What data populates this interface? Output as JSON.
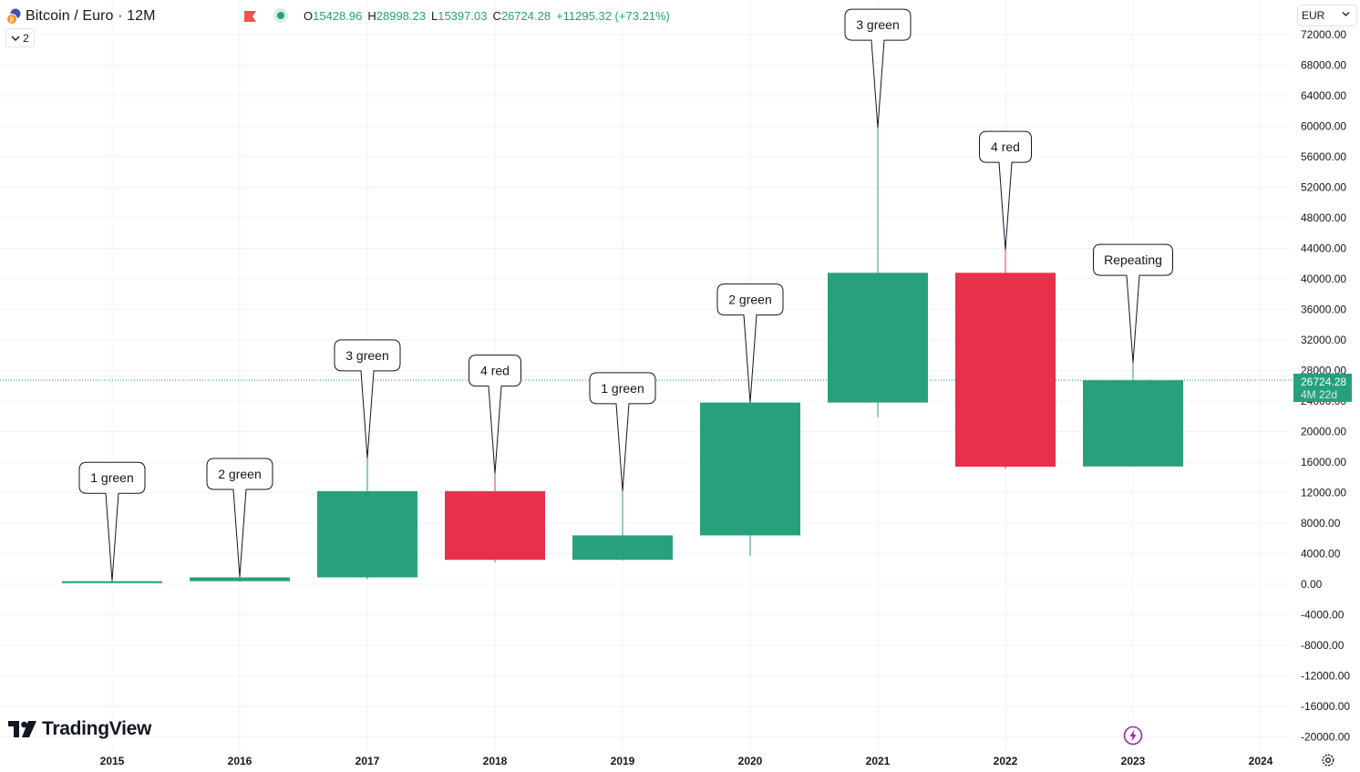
{
  "header": {
    "symbol": "Bitcoin / Euro · 12M",
    "open_label": "O",
    "open": "15428.96",
    "high_label": "H",
    "high": "28998.23",
    "low_label": "L",
    "low": "15397.03",
    "close_label": "C",
    "close": "26724.28",
    "change": "+11295.32 (+73.21%)",
    "collapse_count": "2",
    "currency": "EUR"
  },
  "price_tag": {
    "price": "26724.28",
    "countdown": "4M 22d"
  },
  "branding": {
    "name": "TradingView"
  },
  "icons": {
    "symbol": "bitcoin-euro-icon",
    "flag": "flag-icon",
    "live": "live-dot-icon",
    "collapse": "chevron-down-icon",
    "currency_caret": "chevron-down-icon",
    "logo": "tradingview-logo-icon",
    "event": "lightning-icon",
    "settings": "gear-icon"
  },
  "colors": {
    "up": "#26a17b",
    "down": "#e8304a",
    "grid": "#f0f3fa",
    "text": "#131722",
    "event": "#9c27b0"
  },
  "chart_data": {
    "type": "candlestick",
    "interval": "12M",
    "x": [
      "2015",
      "2016",
      "2017",
      "2018",
      "2019",
      "2020",
      "2021",
      "2022",
      "2023",
      "2024"
    ],
    "candles": [
      {
        "x": "2015",
        "open": 150,
        "high": 450,
        "low": 150,
        "close": 400,
        "annotation": "1 green"
      },
      {
        "x": "2016",
        "open": 400,
        "high": 950,
        "low": 350,
        "close": 900,
        "annotation": "2 green"
      },
      {
        "x": "2017",
        "open": 900,
        "high": 16500,
        "low": 650,
        "close": 12200,
        "annotation": "3 green"
      },
      {
        "x": "2018",
        "open": 12200,
        "high": 14500,
        "low": 2900,
        "close": 3200,
        "annotation": "4 red"
      },
      {
        "x": "2019",
        "open": 3200,
        "high": 12200,
        "low": 3100,
        "close": 6400,
        "annotation": "1 green"
      },
      {
        "x": "2020",
        "open": 6400,
        "high": 23800,
        "low": 3700,
        "close": 23800,
        "annotation": "2 green"
      },
      {
        "x": "2021",
        "open": 23800,
        "high": 59800,
        "low": 21900,
        "close": 40800,
        "annotation": "3 green"
      },
      {
        "x": "2022",
        "open": 40800,
        "high": 43800,
        "low": 15100,
        "close": 15400,
        "annotation": "4 red"
      },
      {
        "x": "2023",
        "open": 15429,
        "high": 28998,
        "low": 15397,
        "close": 26724,
        "annotation": "Repeating"
      }
    ],
    "yticks": [
      72000,
      68000,
      64000,
      60000,
      56000,
      52000,
      48000,
      44000,
      40000,
      36000,
      32000,
      28000,
      24000,
      20000,
      16000,
      12000,
      8000,
      4000,
      0,
      -4000,
      -8000,
      -12000,
      -16000,
      -20000
    ],
    "ytick_labels": [
      "72000.00",
      "68000.00",
      "64000.00",
      "60000.00",
      "56000.00",
      "52000.00",
      "48000.00",
      "44000.00",
      "40000.00",
      "36000.00",
      "32000.00",
      "28000.00",
      "24000.00",
      "20000.00",
      "16000.00",
      "12000.00",
      "8000.00",
      "4000.00",
      "0.00",
      "-4000.00",
      "-8000.00",
      "-12000.00",
      "-16000.00",
      "-20000.00"
    ],
    "ylim": [
      -20000,
      72000
    ],
    "last_price": 26724.28,
    "grid": true
  }
}
